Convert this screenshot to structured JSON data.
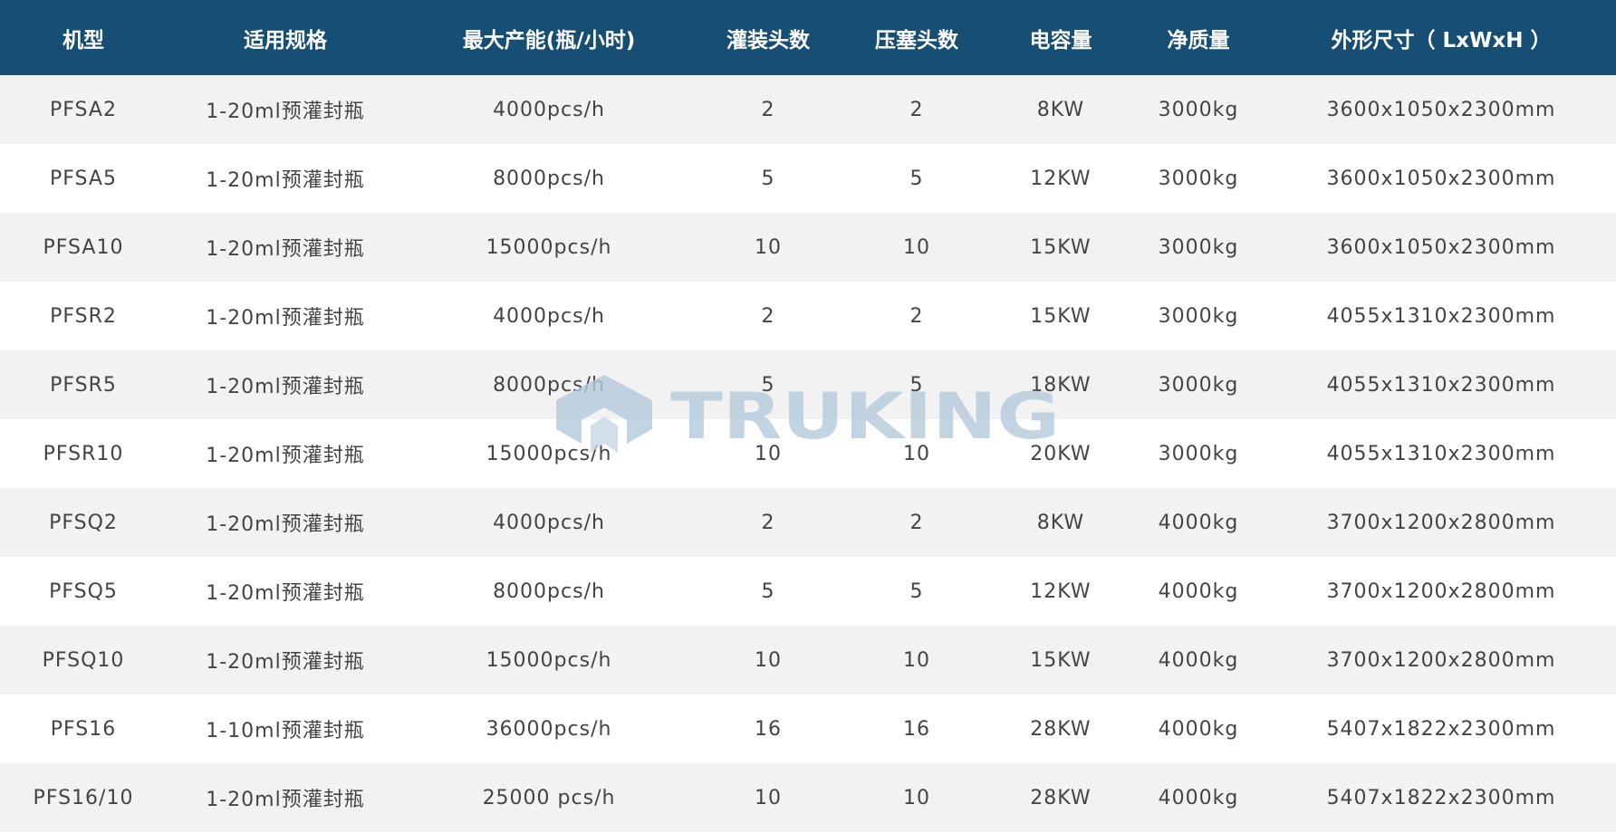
{
  "table": {
    "headers": [
      "机型",
      "适用规格",
      "最大产能(瓶/小时)",
      "灌装头数",
      "压塞头数",
      "电容量",
      "净质量",
      "外形尺寸（ LxWxH ）"
    ],
    "rows": [
      [
        "PFSA2",
        "1-20ml预灌封瓶",
        "4000pcs/h",
        "2",
        "2",
        "8KW",
        "3000kg",
        "3600x1050x2300mm"
      ],
      [
        "PFSA5",
        "1-20ml预灌封瓶",
        "8000pcs/h",
        "5",
        "5",
        "12KW",
        "3000kg",
        "3600x1050x2300mm"
      ],
      [
        "PFSA10",
        "1-20ml预灌封瓶",
        "15000pcs/h",
        "10",
        "10",
        "15KW",
        "3000kg",
        "3600x1050x2300mm"
      ],
      [
        "PFSR2",
        "1-20ml预灌封瓶",
        "4000pcs/h",
        "2",
        "2",
        "15KW",
        "3000kg",
        "4055x1310x2300mm"
      ],
      [
        "PFSR5",
        "1-20ml预灌封瓶",
        "8000pcs/h",
        "5",
        "5",
        "18KW",
        "3000kg",
        "4055x1310x2300mm"
      ],
      [
        "PFSR10",
        "1-20ml预灌封瓶",
        "15000pcs/h",
        "10",
        "10",
        "20KW",
        "3000kg",
        "4055x1310x2300mm"
      ],
      [
        "PFSQ2",
        "1-20ml预灌封瓶",
        "4000pcs/h",
        "2",
        "2",
        "8KW",
        "4000kg",
        "3700x1200x2800mm"
      ],
      [
        "PFSQ5",
        "1-20ml预灌封瓶",
        "8000pcs/h",
        "5",
        "5",
        "12KW",
        "4000kg",
        "3700x1200x2800mm"
      ],
      [
        "PFSQ10",
        "1-20ml预灌封瓶",
        "15000pcs/h",
        "10",
        "10",
        "15KW",
        "4000kg",
        "3700x1200x2800mm"
      ],
      [
        "PFS16",
        "1-10ml预灌封瓶",
        "36000pcs/h",
        "16",
        "16",
        "28KW",
        "4000kg",
        "5407x1822x2300mm"
      ],
      [
        "PFS16/10",
        "1-20ml预灌封瓶",
        "25000 pcs/h",
        "10",
        "10",
        "28KW",
        "4000kg",
        "5407x1822x2300mm"
      ]
    ]
  },
  "watermark": {
    "text": "TRUKING",
    "color": "#b4cadb"
  },
  "colors": {
    "header_bg": "#174e73",
    "row_alt": "#f2f2f2"
  }
}
